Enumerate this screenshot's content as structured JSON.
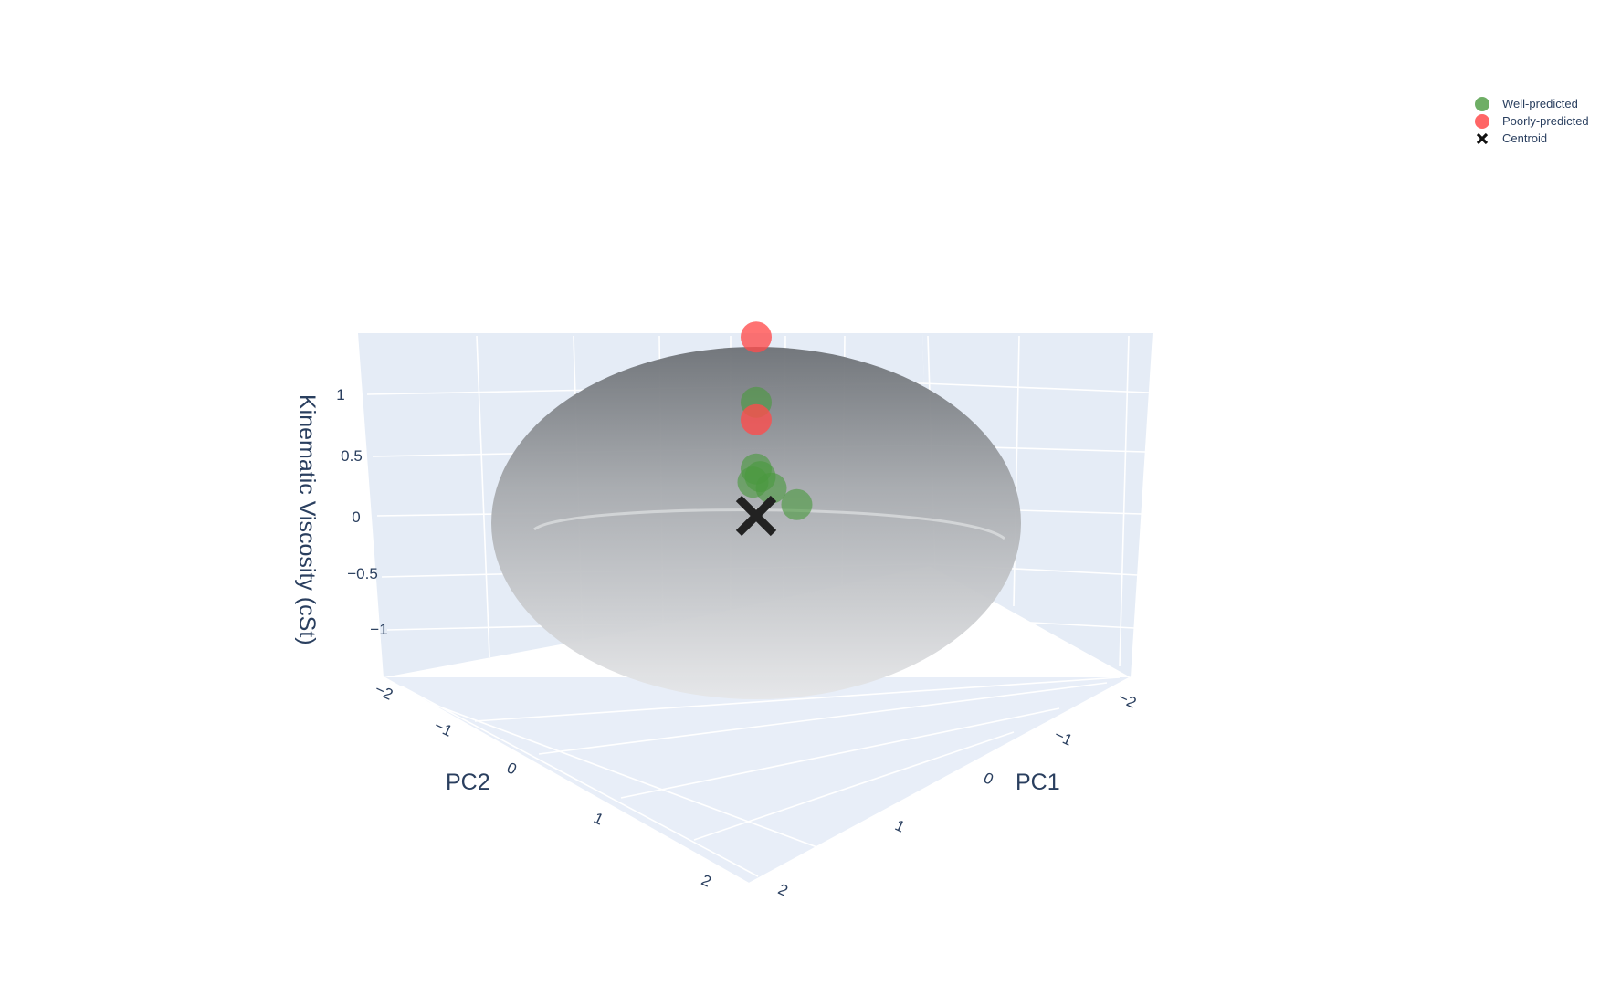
{
  "chart_data": {
    "type": "scatter3d",
    "title": "",
    "axes": {
      "x": {
        "title": "PC1",
        "range": [
          -2,
          2
        ],
        "ticks": [
          -2,
          -1,
          0,
          1,
          2
        ],
        "tick_labels": [
          "−2",
          "−1",
          "0",
          "1",
          "2"
        ]
      },
      "y": {
        "title": "PC2",
        "range": [
          -2,
          2
        ],
        "ticks": [
          -2,
          -1,
          0,
          1,
          2
        ],
        "tick_labels": [
          "−2",
          "−1",
          "0",
          "1",
          "2"
        ]
      },
      "z": {
        "title": "Kinematic Viscosity (cSt)",
        "range": [
          -1.25,
          1.25
        ],
        "ticks": [
          -1,
          -0.5,
          0,
          0.5,
          1
        ],
        "tick_labels": [
          "−1",
          "−0.5",
          "0",
          "0.5",
          "1"
        ]
      }
    },
    "grid": true,
    "legend_position": "top-right",
    "series": [
      {
        "name": "Well-predicted",
        "color": "#4a9a3f",
        "marker": "circle",
        "points": [
          {
            "x": 0.0,
            "y": 0.0,
            "z": 0.92
          },
          {
            "x": 0.0,
            "y": 0.0,
            "z": 0.38
          },
          {
            "x": -0.1,
            "y": 0.1,
            "z": 0.26
          },
          {
            "x": 0.05,
            "y": 0.0,
            "z": 0.27
          },
          {
            "x": -0.2,
            "y": -0.1,
            "z": 0.3
          },
          {
            "x": -0.5,
            "y": 0.1,
            "z": 0.15
          }
        ]
      },
      {
        "name": "Poorly-predicted",
        "color": "#ff4b4b",
        "marker": "circle",
        "points": [
          {
            "x": 0.0,
            "y": 0.0,
            "z": 1.45
          },
          {
            "x": 0.0,
            "y": 0.0,
            "z": 0.78
          }
        ]
      },
      {
        "name": "Centroid",
        "color": "#222222",
        "marker": "x",
        "points": [
          {
            "x": 0.0,
            "y": 0.0,
            "z": 0.0
          }
        ]
      }
    ],
    "surface": {
      "name": "ellipsoid",
      "color_top": "#6e7277",
      "color_bottom": "#e6e7e9"
    }
  }
}
